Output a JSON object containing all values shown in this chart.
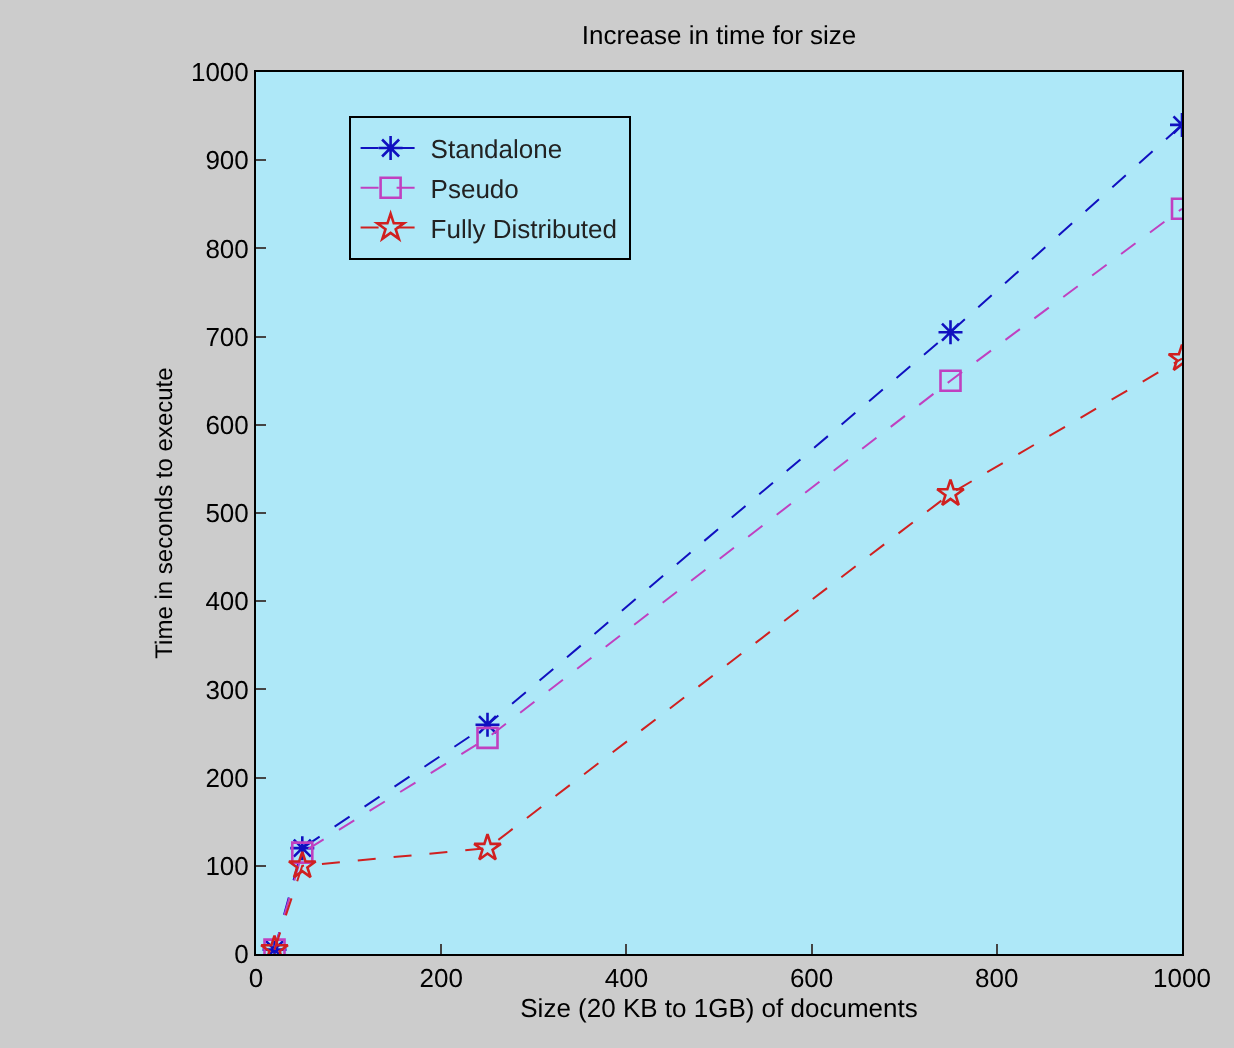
{
  "chart_data": {
    "type": "line",
    "title": "Increase in time for size",
    "xlabel": "Size (20 KB to 1GB) of documents",
    "ylabel": "Time in seconds to execute",
    "x": [
      20,
      50,
      250,
      750,
      1000
    ],
    "series": [
      {
        "name": "Standalone",
        "color": "#1010c0",
        "marker": "cross",
        "values": [
          5,
          120,
          260,
          705,
          940
        ]
      },
      {
        "name": "Pseudo",
        "color": "#c040c0",
        "marker": "square",
        "values": [
          5,
          115,
          245,
          650,
          845
        ]
      },
      {
        "name": "Fully Distributed",
        "color": "#d02020",
        "marker": "star",
        "values": [
          5,
          100,
          120,
          522,
          675
        ]
      }
    ],
    "xlim": [
      0,
      1000
    ],
    "xticks": [
      0,
      200,
      400,
      600,
      800,
      1000
    ],
    "ylim": [
      0,
      1000
    ],
    "yticks": [
      0,
      100,
      200,
      300,
      400,
      500,
      600,
      700,
      800,
      900,
      1000
    ],
    "line_style": "dashed",
    "grid": false,
    "legend": "top left"
  }
}
